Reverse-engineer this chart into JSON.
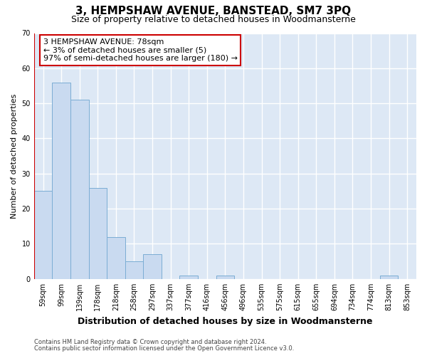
{
  "title": "3, HEMPSHAW AVENUE, BANSTEAD, SM7 3PQ",
  "subtitle": "Size of property relative to detached houses in Woodmansterne",
  "xlabel": "Distribution of detached houses by size in Woodmansterne",
  "ylabel": "Number of detached properties",
  "categories": [
    "59sqm",
    "99sqm",
    "139sqm",
    "178sqm",
    "218sqm",
    "258sqm",
    "297sqm",
    "337sqm",
    "377sqm",
    "416sqm",
    "456sqm",
    "496sqm",
    "535sqm",
    "575sqm",
    "615sqm",
    "655sqm",
    "694sqm",
    "734sqm",
    "774sqm",
    "813sqm",
    "853sqm"
  ],
  "values": [
    25,
    56,
    51,
    26,
    12,
    5,
    7,
    0,
    1,
    0,
    1,
    0,
    0,
    0,
    0,
    0,
    0,
    0,
    0,
    1,
    0
  ],
  "bar_color": "#c9daf0",
  "bar_edge_color": "#7badd4",
  "property_line_color": "#cc0000",
  "property_line_x": -0.5,
  "ylim": [
    0,
    70
  ],
  "yticks": [
    0,
    10,
    20,
    30,
    40,
    50,
    60,
    70
  ],
  "annotation_text": "3 HEMPSHAW AVENUE: 78sqm\n← 3% of detached houses are smaller (5)\n97% of semi-detached houses are larger (180) →",
  "annotation_box_facecolor": "#ffffff",
  "annotation_box_edgecolor": "#cc0000",
  "footer_line1": "Contains HM Land Registry data © Crown copyright and database right 2024.",
  "footer_line2": "Contains public sector information licensed under the Open Government Licence v3.0.",
  "fig_facecolor": "#ffffff",
  "plot_facecolor": "#dde8f5",
  "grid_color": "#ffffff",
  "title_fontsize": 11,
  "subtitle_fontsize": 9,
  "ylabel_fontsize": 8,
  "xlabel_fontsize": 9,
  "tick_fontsize": 7,
  "footer_fontsize": 6,
  "annotation_fontsize": 8
}
